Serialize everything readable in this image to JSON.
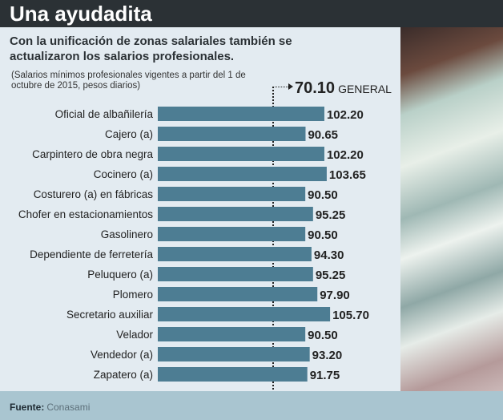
{
  "title": "Una ayudadita",
  "subtitle": "Con la unificación de zonas salariales también se actualizaron los salarios profesionales.",
  "note": "(Salarios mínimos profesionales vigentes a partir del 1 de octubre de 2015, pesos diarios)",
  "footer": {
    "label": "Fuente:",
    "source": "Conasami"
  },
  "colors": {
    "bar": "#4d7d93",
    "title_bg": "#2b3135",
    "footer_bg": "#a9c5d0"
  },
  "chart_data": {
    "type": "bar",
    "orientation": "horizontal",
    "categories": [
      "Oficial de albañilería",
      "Cajero (a)",
      "Carpintero de obra negra",
      "Cocinero (a)",
      "Costurero (a) en fábricas",
      "Chofer en estacionamientos",
      "Gasolinero",
      "Dependiente de ferretería",
      "Peluquero (a)",
      "Plomero",
      "Secretario auxiliar",
      "Velador",
      "Vendedor (a)",
      "Zapatero (a)"
    ],
    "values": [
      102.2,
      90.65,
      102.2,
      103.65,
      90.5,
      95.25,
      90.5,
      94.3,
      95.25,
      97.9,
      105.7,
      90.5,
      93.2,
      91.75
    ],
    "value_labels": [
      "102.20",
      "90.65",
      "102.20",
      "103.65",
      "90.50",
      "95.25",
      "90.50",
      "94.30",
      "95.25",
      "97.90",
      "105.70",
      "90.50",
      "93.20",
      "91.75"
    ],
    "reference": {
      "value": 70.1,
      "value_label": "70.10",
      "label": "GENERAL"
    },
    "xlim": [
      0,
      106
    ]
  }
}
